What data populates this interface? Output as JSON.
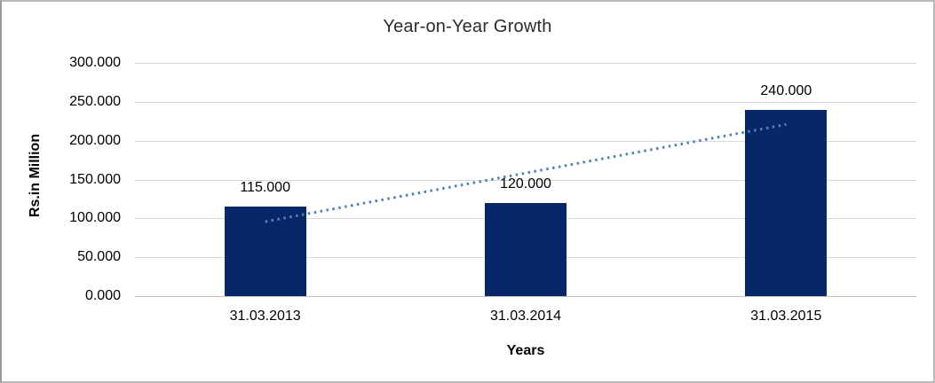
{
  "chart_data": {
    "type": "bar",
    "title": "Year-on-Year Growth",
    "xlabel": "Years",
    "ylabel": "Rs.in Million",
    "categories": [
      "31.03.2013",
      "31.03.2014",
      "31.03.2015"
    ],
    "values": [
      115,
      120,
      240
    ],
    "value_labels": [
      "115.000",
      "120.000",
      "240.000"
    ],
    "y_ticks": [
      "300.000",
      "250.000",
      "200.000",
      "150.000",
      "100.000",
      "50.000",
      "0.000"
    ],
    "ylim": [
      0,
      300
    ],
    "grid": "horizontal-only",
    "legend_position": "none",
    "trendline": {
      "type": "linear",
      "style": "dotted",
      "color": "#4f81bd"
    },
    "colors": {
      "bar": "#082766",
      "gridline": "#d9d9d9",
      "axis_line": "#bfbfbf",
      "background": "#ffffff",
      "frame_border": "#b9b9b9",
      "title_text": "#2b2b2b",
      "label_text": "#000000"
    }
  }
}
